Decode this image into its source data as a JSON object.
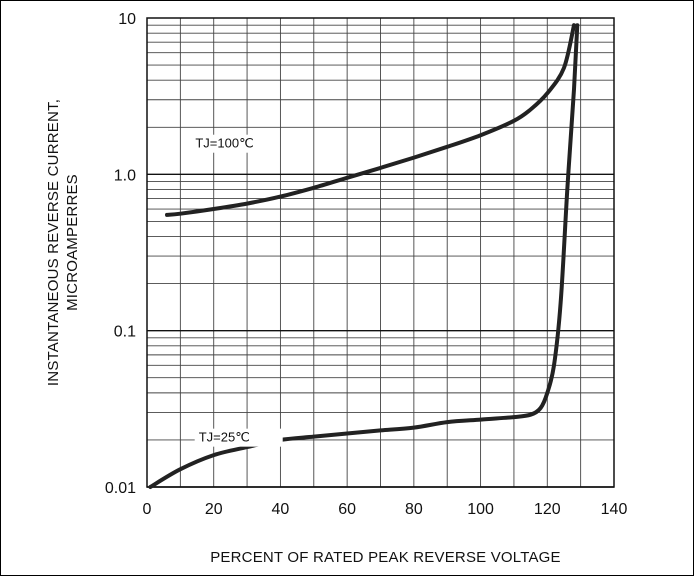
{
  "chart_data": {
    "type": "line",
    "xlabel": "PERCENT OF RATED PEAK REVERSE VOLTAGE",
    "ylabel": [
      "INSTANTANEOUS REVERSE CURRENT,",
      "MICROAMPERRES"
    ],
    "xlim": [
      0,
      140
    ],
    "ylim": [
      0.01,
      10
    ],
    "yscale": "log",
    "x_ticks": [
      0,
      20,
      40,
      60,
      80,
      100,
      120,
      140
    ],
    "y_ticks": [
      0.01,
      0.1,
      1.0,
      10
    ],
    "x_tick_labels": [
      "0",
      "20",
      "40",
      "60",
      "80",
      "100",
      "120",
      "140"
    ],
    "y_tick_labels": [
      "0.01",
      "0.1",
      "1.0",
      "10"
    ],
    "grid": true,
    "series": [
      {
        "name": "TJ=100℃",
        "color": "#222222",
        "x": [
          6,
          10,
          20,
          30,
          40,
          50,
          60,
          70,
          80,
          90,
          100,
          110,
          115,
          120,
          125,
          128
        ],
        "y": [
          0.55,
          0.56,
          0.6,
          0.65,
          0.72,
          0.82,
          0.95,
          1.1,
          1.28,
          1.5,
          1.78,
          2.2,
          2.6,
          3.3,
          4.8,
          9.0
        ]
      },
      {
        "name": "TJ=25℃",
        "color": "#222222",
        "x": [
          1,
          10,
          20,
          30,
          40,
          50,
          60,
          70,
          80,
          90,
          100,
          110,
          115,
          118,
          120,
          122,
          124,
          126,
          128,
          129
        ],
        "y": [
          0.01,
          0.013,
          0.016,
          0.018,
          0.02,
          0.021,
          0.022,
          0.023,
          0.024,
          0.026,
          0.027,
          0.028,
          0.029,
          0.032,
          0.04,
          0.06,
          0.15,
          0.8,
          3.5,
          9.0
        ]
      }
    ]
  }
}
